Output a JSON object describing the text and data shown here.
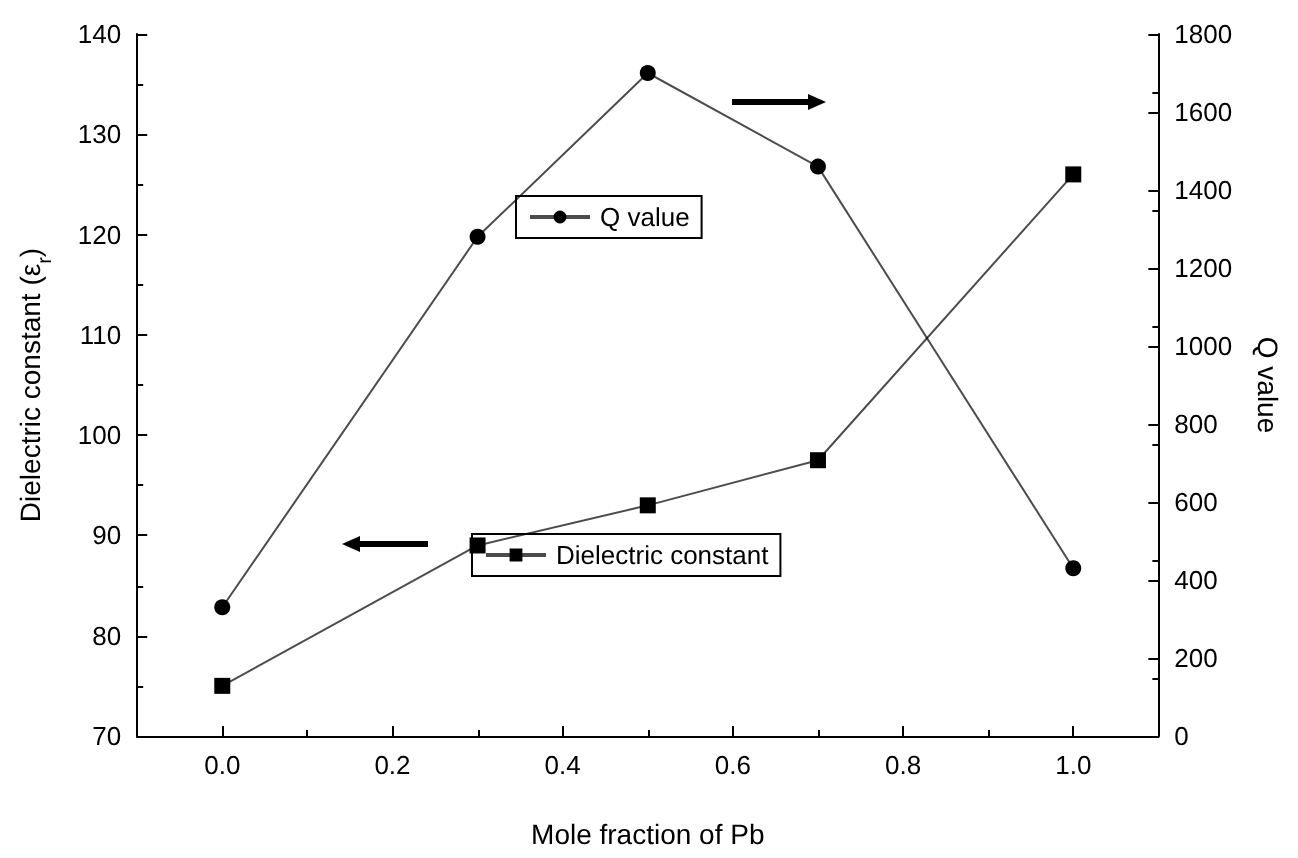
{
  "chart_data": {
    "type": "line",
    "xlabel": "Mole fraction of Pb",
    "ylabel": "Dielectric constant (ε$_{r}$)",
    "y2label": "Q value",
    "x": [
      0.0,
      0.3,
      0.5,
      0.7,
      1.0
    ],
    "series": [
      {
        "name": "Q value",
        "color": "#000000",
        "values": [
          330,
          1280,
          1700,
          1460,
          430
        ],
        "axis": "y2",
        "marker": "circle"
      },
      {
        "name": "Dielectric constant",
        "color": "#000000",
        "values": [
          75,
          89,
          93,
          97.5,
          126
        ],
        "marker": "square"
      }
    ],
    "xlim": [
      -0.1,
      1.1
    ],
    "xticks": [
      {
        "value": 0.0,
        "label": "0.0"
      },
      {
        "value": 0.2,
        "label": "0.2"
      },
      {
        "value": 0.4,
        "label": "0.4"
      },
      {
        "value": 0.6,
        "label": "0.6"
      },
      {
        "value": 0.8,
        "label": "0.8"
      },
      {
        "value": 1.0,
        "label": "1.0"
      }
    ],
    "ylim": [
      70,
      140
    ],
    "yticks": [
      70,
      80,
      90,
      100,
      110,
      120,
      130,
      140
    ],
    "y2lim": [
      0,
      1800
    ],
    "y2ticks": [
      0,
      200,
      400,
      600,
      800,
      1000,
      1200,
      1400,
      1600,
      1800
    ],
    "grid": false,
    "legend": "center",
    "line_style": "solid"
  }
}
